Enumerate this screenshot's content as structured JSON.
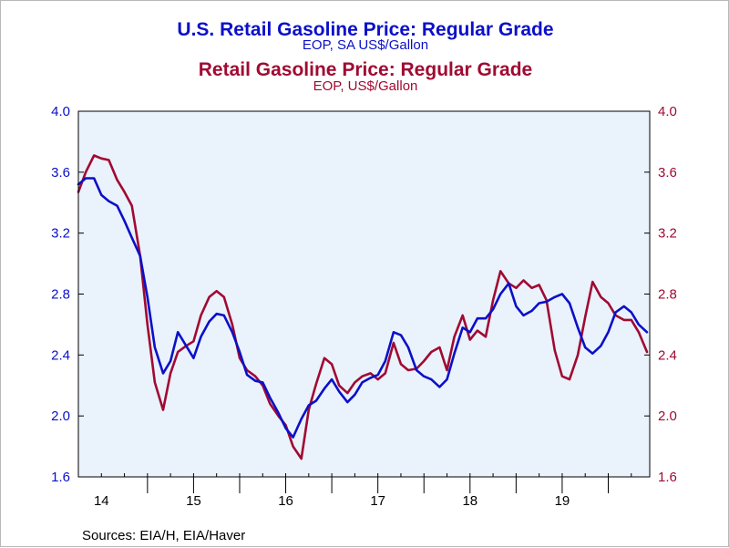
{
  "chart_data": {
    "type": "line",
    "title": "U.S. Retail Gasoline Price: Regular Grade",
    "subtitle": "EOP, SA US$/Gallon",
    "title2": "Retail Gasoline Price: Regular Grade",
    "subtitle2": "EOP, US$/Gallon",
    "source": "Sources:  EIA/H, EIA/Haver",
    "ylim": [
      1.6,
      4.0
    ],
    "yticks": [
      1.6,
      2.0,
      2.4,
      2.8,
      3.2,
      3.6,
      4.0
    ],
    "ytick_labels": [
      "1.6",
      "2.0",
      "2.4",
      "2.8",
      "3.2",
      "3.6",
      "4.0"
    ],
    "xlim": [
      2013.75,
      2019.95
    ],
    "xticks": [
      2014,
      2015,
      2016,
      2017,
      2018,
      2019
    ],
    "xtick_labels": [
      "14",
      "15",
      "16",
      "17",
      "18",
      "19"
    ],
    "grid": false,
    "background_color": "#eaf2fb",
    "series": [
      {
        "axis": "left",
        "color": "#0b10c8",
        "x": [
          2013.75,
          2013.83,
          2013.92,
          2014.0,
          2014.08,
          2014.17,
          2014.25,
          2014.33,
          2014.42,
          2014.5,
          2014.58,
          2014.67,
          2014.75,
          2014.83,
          2014.92,
          2015.0,
          2015.08,
          2015.17,
          2015.25,
          2015.33,
          2015.42,
          2015.5,
          2015.58,
          2015.67,
          2015.75,
          2015.83,
          2015.92,
          2016.0,
          2016.08,
          2016.17,
          2016.25,
          2016.33,
          2016.42,
          2016.5,
          2016.58,
          2016.67,
          2016.75,
          2016.83,
          2016.92,
          2017.0,
          2017.08,
          2017.17,
          2017.25,
          2017.33,
          2017.42,
          2017.5,
          2017.58,
          2017.67,
          2017.75,
          2017.83,
          2017.92,
          2018.0,
          2018.08,
          2018.17,
          2018.25,
          2018.33,
          2018.42,
          2018.5,
          2018.58,
          2018.67,
          2018.75,
          2018.83,
          2018.92,
          2019.0,
          2019.08,
          2019.17,
          2019.25,
          2019.33,
          2019.42,
          2019.5,
          2019.58,
          2019.67,
          2019.75,
          2019.83,
          2019.92
        ],
        "values": [
          3.52,
          3.56,
          3.56,
          3.45,
          3.41,
          3.38,
          3.28,
          3.17,
          3.05,
          2.78,
          2.45,
          2.28,
          2.36,
          2.55,
          2.46,
          2.38,
          2.52,
          2.62,
          2.67,
          2.66,
          2.55,
          2.42,
          2.27,
          2.23,
          2.22,
          2.12,
          2.02,
          1.92,
          1.86,
          1.98,
          2.07,
          2.1,
          2.18,
          2.24,
          2.16,
          2.09,
          2.14,
          2.22,
          2.25,
          2.27,
          2.36,
          2.55,
          2.53,
          2.45,
          2.3,
          2.26,
          2.24,
          2.19,
          2.24,
          2.41,
          2.58,
          2.55,
          2.64,
          2.64,
          2.7,
          2.8,
          2.87,
          2.72,
          2.66,
          2.69,
          2.74,
          2.75,
          2.78,
          2.8,
          2.74,
          2.58,
          2.45,
          2.41,
          2.46,
          2.55,
          2.68,
          2.72,
          2.68,
          2.6,
          2.55
        ]
      },
      {
        "axis": "right",
        "color": "#a00a32",
        "x": [
          2013.75,
          2013.83,
          2013.92,
          2014.0,
          2014.08,
          2014.17,
          2014.25,
          2014.33,
          2014.42,
          2014.5,
          2014.58,
          2014.67,
          2014.75,
          2014.83,
          2014.92,
          2015.0,
          2015.08,
          2015.17,
          2015.25,
          2015.33,
          2015.42,
          2015.5,
          2015.58,
          2015.67,
          2015.75,
          2015.83,
          2015.92,
          2016.0,
          2016.08,
          2016.17,
          2016.25,
          2016.33,
          2016.42,
          2016.5,
          2016.58,
          2016.67,
          2016.75,
          2016.83,
          2016.92,
          2017.0,
          2017.08,
          2017.17,
          2017.25,
          2017.33,
          2017.42,
          2017.5,
          2017.58,
          2017.67,
          2017.75,
          2017.83,
          2017.92,
          2018.0,
          2018.08,
          2018.17,
          2018.25,
          2018.33,
          2018.42,
          2018.5,
          2018.58,
          2018.67,
          2018.75,
          2018.83,
          2018.92,
          2019.0,
          2019.08,
          2019.17,
          2019.25,
          2019.33,
          2019.42,
          2019.5,
          2019.58,
          2019.67,
          2019.75,
          2019.83,
          2019.92
        ],
        "values": [
          3.47,
          3.6,
          3.71,
          3.69,
          3.68,
          3.55,
          3.47,
          3.38,
          3.05,
          2.6,
          2.22,
          2.04,
          2.28,
          2.42,
          2.46,
          2.49,
          2.66,
          2.78,
          2.82,
          2.78,
          2.6,
          2.38,
          2.3,
          2.26,
          2.2,
          2.08,
          2.0,
          1.94,
          1.8,
          1.72,
          2.04,
          2.21,
          2.38,
          2.34,
          2.2,
          2.15,
          2.22,
          2.26,
          2.28,
          2.24,
          2.28,
          2.48,
          2.34,
          2.3,
          2.31,
          2.36,
          2.42,
          2.45,
          2.3,
          2.52,
          2.66,
          2.5,
          2.56,
          2.52,
          2.76,
          2.95,
          2.87,
          2.84,
          2.89,
          2.84,
          2.86,
          2.76,
          2.43,
          2.26,
          2.24,
          2.4,
          2.65,
          2.88,
          2.78,
          2.74,
          2.66,
          2.63,
          2.63,
          2.55,
          2.42
        ]
      }
    ]
  }
}
